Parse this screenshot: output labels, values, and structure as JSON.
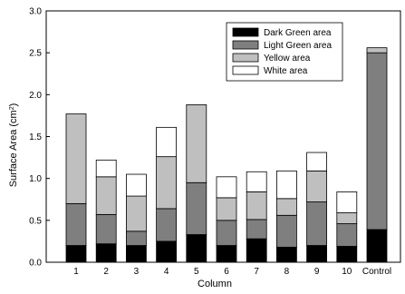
{
  "chart_data": {
    "type": "bar",
    "stacked": true,
    "xlabel": "Column",
    "ylabel": "Surface Area (cm",
    "ylabel_superscript": "2",
    "ylabel_suffix": ")",
    "ylim": [
      0,
      3.0
    ],
    "yticks": [
      "0.0",
      "0.5",
      "1.0",
      "1.5",
      "2.0",
      "2.5",
      "3.0"
    ],
    "categories": [
      "1",
      "2",
      "3",
      "4",
      "5",
      "6",
      "7",
      "8",
      "9",
      "10",
      "Control"
    ],
    "grid": false,
    "legend_position": "top-right",
    "series": [
      {
        "name": "Dark Green area",
        "color": "#000000",
        "values": [
          0.2,
          0.22,
          0.2,
          0.25,
          0.33,
          0.2,
          0.28,
          0.18,
          0.2,
          0.19,
          0.39
        ]
      },
      {
        "name": "Light Green area",
        "color": "#7f7f7f",
        "values": [
          0.5,
          0.35,
          0.17,
          0.39,
          0.62,
          0.3,
          0.23,
          0.38,
          0.52,
          0.27,
          2.11
        ]
      },
      {
        "name": "Yellow area",
        "color": "#bfbfbf",
        "values": [
          1.07,
          0.45,
          0.42,
          0.62,
          0.93,
          0.27,
          0.33,
          0.2,
          0.37,
          0.13,
          0.06
        ]
      },
      {
        "name": "White area",
        "color": "#ffffff",
        "values": [
          0.0,
          0.2,
          0.26,
          0.35,
          0.0,
          0.25,
          0.24,
          0.33,
          0.22,
          0.25,
          0.0
        ]
      }
    ]
  }
}
